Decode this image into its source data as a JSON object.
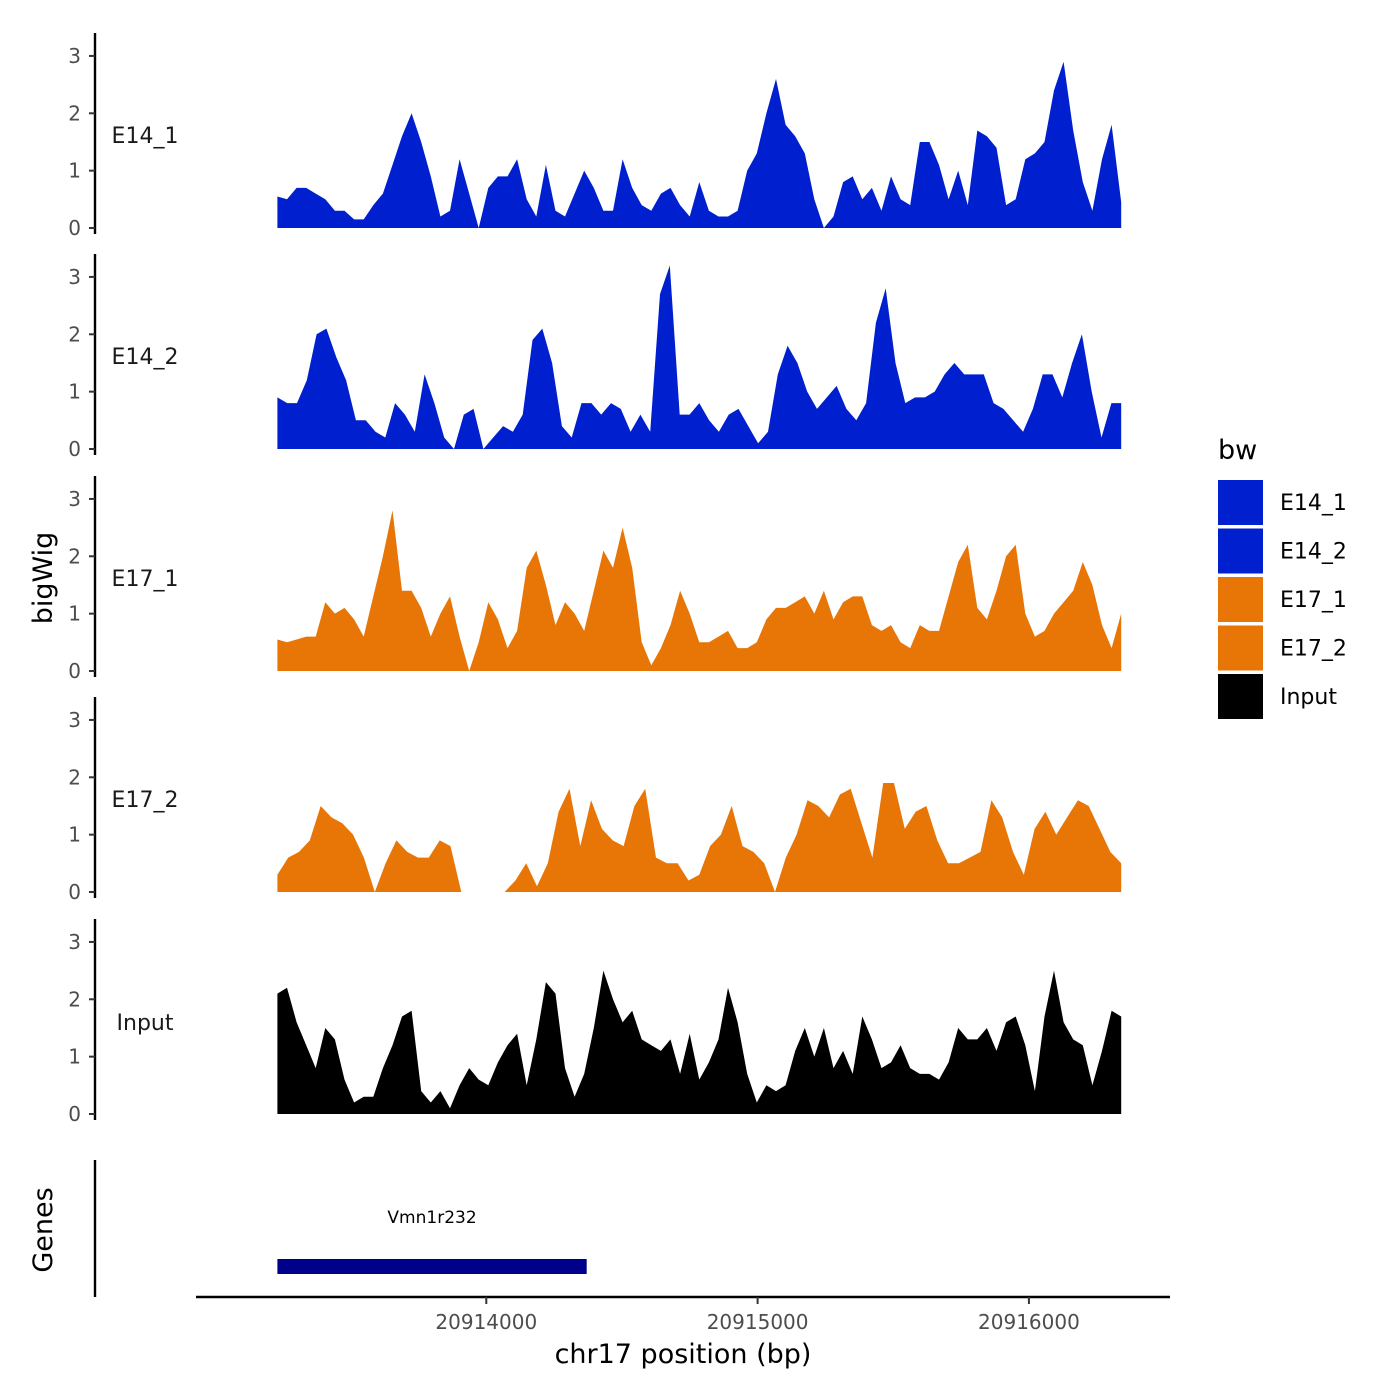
{
  "chart_data": {
    "type": "area",
    "ylabel": "bigWig",
    "xlabel": "chr17 position (bp)",
    "genes_label": "Genes",
    "x_range": [
      20913230,
      20916340
    ],
    "x_axis_range": [
      20912930,
      20916520
    ],
    "x_ticks": [
      20914000,
      20915000,
      20916000
    ],
    "x_tick_labels": [
      "20914000",
      "20915000",
      "20916000"
    ],
    "ylim": [
      0,
      3.4
    ],
    "y_ticks": [
      0,
      1,
      2,
      3
    ],
    "y_tick_labels": [
      "0",
      "1",
      "2",
      "3"
    ],
    "legend": {
      "title": "bw",
      "entries": [
        {
          "label": "E14_1",
          "color": "#0020d0"
        },
        {
          "label": "E14_2",
          "color": "#0020d0"
        },
        {
          "label": "E17_1",
          "color": "#e87607"
        },
        {
          "label": "E17_2",
          "color": "#e87607"
        },
        {
          "label": "Input",
          "color": "#000000"
        }
      ]
    },
    "series": [
      {
        "name": "E14_1",
        "color": "#0020d0",
        "values": [
          0.55,
          0.5,
          0.7,
          0.7,
          0.6,
          0.5,
          0.3,
          0.3,
          0.15,
          0.15,
          0.4,
          0.6,
          1.1,
          1.6,
          2.0,
          1.5,
          0.9,
          0.2,
          0.3,
          1.2,
          0.6,
          0.0,
          0.7,
          0.9,
          0.9,
          1.2,
          0.5,
          0.2,
          1.1,
          0.3,
          0.2,
          0.6,
          1.0,
          0.7,
          0.3,
          0.3,
          1.2,
          0.7,
          0.4,
          0.3,
          0.6,
          0.7,
          0.4,
          0.2,
          0.8,
          0.3,
          0.2,
          0.2,
          0.3,
          1.0,
          1.3,
          2.0,
          2.6,
          1.8,
          1.6,
          1.3,
          0.5,
          0.0,
          0.2,
          0.8,
          0.9,
          0.5,
          0.7,
          0.3,
          0.9,
          0.5,
          0.4,
          1.5,
          1.5,
          1.1,
          0.5,
          1.0,
          0.4,
          1.7,
          1.6,
          1.4,
          0.4,
          0.5,
          1.2,
          1.3,
          1.5,
          2.4,
          2.9,
          1.7,
          0.8,
          0.3,
          1.2,
          1.8,
          0.45
        ]
      },
      {
        "name": "E14_2",
        "color": "#0020d0",
        "values": [
          0.9,
          0.8,
          0.8,
          1.2,
          2.0,
          2.1,
          1.6,
          1.2,
          0.5,
          0.5,
          0.3,
          0.2,
          0.8,
          0.6,
          0.3,
          1.3,
          0.8,
          0.2,
          0.0,
          0.6,
          0.7,
          0.0,
          0.2,
          0.4,
          0.3,
          0.6,
          1.9,
          2.1,
          1.5,
          0.4,
          0.2,
          0.8,
          0.8,
          0.6,
          0.8,
          0.7,
          0.3,
          0.6,
          0.3,
          2.7,
          3.2,
          0.6,
          0.6,
          0.8,
          0.5,
          0.3,
          0.6,
          0.7,
          0.4,
          0.1,
          0.3,
          1.3,
          1.8,
          1.5,
          1.0,
          0.7,
          0.9,
          1.1,
          0.7,
          0.5,
          0.8,
          2.2,
          2.8,
          1.5,
          0.8,
          0.9,
          0.9,
          1.0,
          1.3,
          1.5,
          1.3,
          1.3,
          1.3,
          0.8,
          0.7,
          0.5,
          0.3,
          0.7,
          1.3,
          1.3,
          0.9,
          1.5,
          2.0,
          1.0,
          0.2,
          0.8,
          0.8
        ]
      },
      {
        "name": "E17_1",
        "color": "#e87607",
        "values": [
          0.55,
          0.5,
          0.55,
          0.6,
          0.6,
          1.2,
          1.0,
          1.1,
          0.9,
          0.6,
          1.3,
          2.0,
          2.8,
          1.4,
          1.4,
          1.1,
          0.6,
          1.0,
          1.3,
          0.6,
          0.0,
          0.5,
          1.2,
          0.9,
          0.4,
          0.7,
          1.8,
          2.1,
          1.5,
          0.8,
          1.2,
          1.0,
          0.7,
          1.4,
          2.1,
          1.8,
          2.5,
          1.8,
          0.5,
          0.1,
          0.4,
          0.8,
          1.4,
          1.0,
          0.5,
          0.5,
          0.6,
          0.7,
          0.4,
          0.4,
          0.5,
          0.9,
          1.1,
          1.1,
          1.2,
          1.3,
          1.0,
          1.4,
          0.9,
          1.2,
          1.3,
          1.3,
          0.8,
          0.7,
          0.8,
          0.5,
          0.4,
          0.8,
          0.7,
          0.7,
          1.3,
          1.9,
          2.2,
          1.1,
          0.9,
          1.4,
          2.0,
          2.2,
          1.0,
          0.6,
          0.7,
          1.0,
          1.2,
          1.4,
          1.9,
          1.5,
          0.8,
          0.4,
          1.0
        ]
      },
      {
        "name": "E17_2",
        "color": "#e87607",
        "values": [
          0.3,
          0.6,
          0.7,
          0.9,
          1.5,
          1.3,
          1.2,
          1.0,
          0.6,
          0.0,
          0.5,
          0.9,
          0.7,
          0.6,
          0.6,
          0.9,
          0.8,
          0.0,
          0.0,
          0.0,
          0.0,
          0.0,
          0.2,
          0.5,
          0.1,
          0.5,
          1.4,
          1.8,
          0.8,
          1.6,
          1.1,
          0.9,
          0.8,
          1.5,
          1.8,
          0.6,
          0.5,
          0.5,
          0.2,
          0.3,
          0.8,
          1.0,
          1.5,
          0.8,
          0.7,
          0.5,
          0.0,
          0.6,
          1.0,
          1.6,
          1.5,
          1.3,
          1.7,
          1.8,
          1.2,
          0.6,
          1.9,
          1.9,
          1.1,
          1.4,
          1.5,
          0.9,
          0.5,
          0.5,
          0.6,
          0.7,
          1.6,
          1.3,
          0.7,
          0.3,
          1.1,
          1.4,
          1.0,
          1.3,
          1.6,
          1.5,
          1.1,
          0.7,
          0.5
        ]
      },
      {
        "name": "Input",
        "color": "#000000",
        "values": [
          2.1,
          2.2,
          1.6,
          1.2,
          0.8,
          1.5,
          1.3,
          0.6,
          0.2,
          0.3,
          0.3,
          0.8,
          1.2,
          1.7,
          1.8,
          0.4,
          0.2,
          0.4,
          0.1,
          0.5,
          0.8,
          0.6,
          0.5,
          0.9,
          1.2,
          1.4,
          0.5,
          1.3,
          2.3,
          2.1,
          0.8,
          0.3,
          0.7,
          1.5,
          2.5,
          2.0,
          1.6,
          1.8,
          1.3,
          1.2,
          1.1,
          1.3,
          0.7,
          1.4,
          0.6,
          0.9,
          1.3,
          2.2,
          1.6,
          0.7,
          0.2,
          0.5,
          0.4,
          0.5,
          1.1,
          1.5,
          1.0,
          1.5,
          0.8,
          1.1,
          0.7,
          1.7,
          1.3,
          0.8,
          0.9,
          1.2,
          0.8,
          0.7,
          0.7,
          0.6,
          0.9,
          1.5,
          1.3,
          1.3,
          1.5,
          1.1,
          1.6,
          1.7,
          1.2,
          0.4,
          1.7,
          2.5,
          1.6,
          1.3,
          1.2,
          0.5,
          1.1,
          1.8,
          1.7
        ]
      }
    ],
    "genes": [
      {
        "name": "Vmn1r232",
        "start": 20913230,
        "end": 20914370,
        "color": "#00008b"
      }
    ]
  }
}
